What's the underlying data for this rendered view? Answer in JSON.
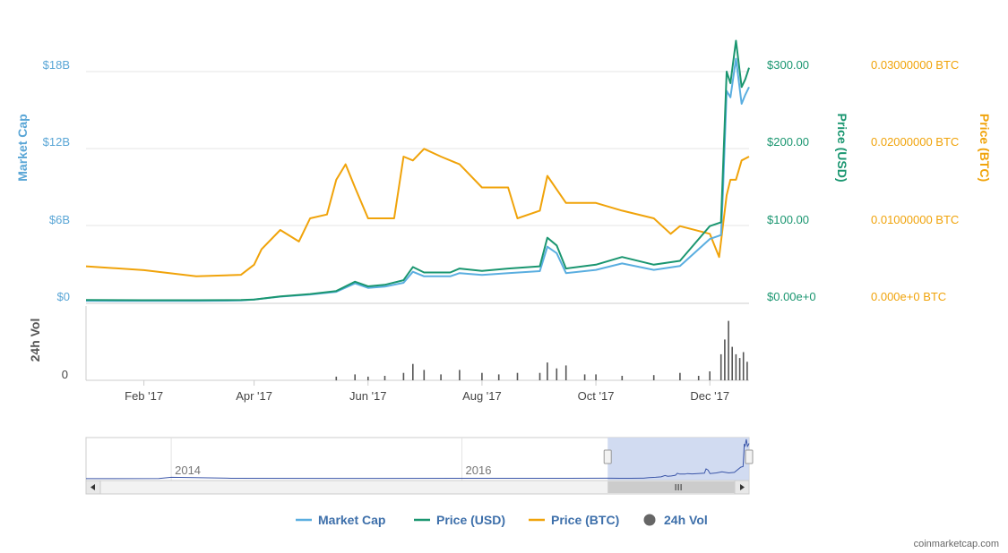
{
  "colors": {
    "market_cap": "#5aaee0",
    "price_usd": "#1a9670",
    "price_btc": "#f0a30a",
    "volume": "#555555",
    "navigator_fill": "#c9d5ee",
    "navigator_line": "#3a55a8"
  },
  "credit": "coinmarketcap.com",
  "chart_data": {
    "type": "line",
    "axes": {
      "market_cap": {
        "title": "Market Cap",
        "ticks": [
          "$0",
          "$6B",
          "$12B",
          "$18B"
        ],
        "ylim": [
          0,
          18000000000
        ]
      },
      "price_usd": {
        "title": "Price (USD)",
        "ticks": [
          "$0.00e+0",
          "$100.00",
          "$200.00",
          "$300.00"
        ],
        "ylim": [
          0,
          300
        ]
      },
      "price_btc": {
        "title": "Price (BTC)",
        "ticks": [
          "0.000e+0 BTC",
          "0.01000000 BTC",
          "0.02000000 BTC",
          "0.03000000 BTC"
        ],
        "ylim": [
          0,
          0.03
        ]
      },
      "volume": {
        "title": "24h Vol",
        "ticks": [
          "0"
        ]
      }
    },
    "x_ticks": [
      "Feb '17",
      "Apr '17",
      "Jun '17",
      "Aug '17",
      "Oct '17",
      "Dec '17"
    ],
    "x_tick_dates": [
      "2017-02-01",
      "2017-04-01",
      "2017-06-01",
      "2017-08-01",
      "2017-10-01",
      "2017-12-01"
    ],
    "xlim": [
      "2017-01-01",
      "2017-12-22"
    ],
    "legend": [
      "Market Cap",
      "Price (USD)",
      "Price (BTC)",
      "24h Vol"
    ],
    "legend_position": "bottom",
    "series": [
      {
        "name": "Price (USD)",
        "axis": "price_usd",
        "points": [
          [
            "2017-01-01",
            4.3
          ],
          [
            "2017-02-01",
            4.0
          ],
          [
            "2017-03-01",
            4.0
          ],
          [
            "2017-03-25",
            4.3
          ],
          [
            "2017-04-01",
            5.0
          ],
          [
            "2017-04-15",
            9.0
          ],
          [
            "2017-05-01",
            12.0
          ],
          [
            "2017-05-15",
            16.0
          ],
          [
            "2017-05-25",
            28.0
          ],
          [
            "2017-06-01",
            22.0
          ],
          [
            "2017-06-10",
            24.0
          ],
          [
            "2017-06-20",
            30.0
          ],
          [
            "2017-06-25",
            47.0
          ],
          [
            "2017-07-01",
            40.0
          ],
          [
            "2017-07-15",
            40.0
          ],
          [
            "2017-07-20",
            45.0
          ],
          [
            "2017-08-01",
            42.0
          ],
          [
            "2017-08-15",
            45.0
          ],
          [
            "2017-09-01",
            48.0
          ],
          [
            "2017-09-05",
            85.0
          ],
          [
            "2017-09-10",
            75.0
          ],
          [
            "2017-09-15",
            45.0
          ],
          [
            "2017-10-01",
            50.0
          ],
          [
            "2017-10-15",
            60.0
          ],
          [
            "2017-11-01",
            50.0
          ],
          [
            "2017-11-15",
            55.0
          ],
          [
            "2017-12-01",
            100.0
          ],
          [
            "2017-12-07",
            105.0
          ],
          [
            "2017-12-08",
            170.0
          ],
          [
            "2017-12-10",
            300.0
          ],
          [
            "2017-12-12",
            285.0
          ],
          [
            "2017-12-15",
            340.0
          ],
          [
            "2017-12-18",
            280.0
          ],
          [
            "2017-12-20",
            290.0
          ],
          [
            "2017-12-22",
            305.0
          ]
        ]
      },
      {
        "name": "Market Cap",
        "axis": "market_cap",
        "points": [
          [
            "2017-01-01",
            200000000
          ],
          [
            "2017-02-01",
            190000000
          ],
          [
            "2017-03-01",
            190000000
          ],
          [
            "2017-03-25",
            220000000
          ],
          [
            "2017-04-01",
            290000000
          ],
          [
            "2017-04-15",
            520000000
          ],
          [
            "2017-05-01",
            690000000
          ],
          [
            "2017-05-15",
            900000000
          ],
          [
            "2017-05-25",
            1550000000
          ],
          [
            "2017-06-01",
            1200000000
          ],
          [
            "2017-06-10",
            1300000000
          ],
          [
            "2017-06-20",
            1600000000
          ],
          [
            "2017-06-25",
            2450000000
          ],
          [
            "2017-07-01",
            2100000000
          ],
          [
            "2017-07-15",
            2100000000
          ],
          [
            "2017-07-20",
            2350000000
          ],
          [
            "2017-08-01",
            2200000000
          ],
          [
            "2017-08-15",
            2350000000
          ],
          [
            "2017-09-01",
            2500000000
          ],
          [
            "2017-09-05",
            4400000000
          ],
          [
            "2017-09-10",
            3900000000
          ],
          [
            "2017-09-15",
            2350000000
          ],
          [
            "2017-10-01",
            2600000000
          ],
          [
            "2017-10-15",
            3100000000
          ],
          [
            "2017-11-01",
            2600000000
          ],
          [
            "2017-11-15",
            2900000000
          ],
          [
            "2017-12-01",
            5000000000
          ],
          [
            "2017-12-07",
            5300000000
          ],
          [
            "2017-12-08",
            8500000000
          ],
          [
            "2017-12-10",
            16500000000
          ],
          [
            "2017-12-12",
            16000000000
          ],
          [
            "2017-12-15",
            19000000000
          ],
          [
            "2017-12-18",
            15500000000
          ],
          [
            "2017-12-20",
            16200000000
          ],
          [
            "2017-12-22",
            16800000000
          ]
        ]
      },
      {
        "name": "Price (BTC)",
        "axis": "price_btc",
        "points": [
          [
            "2017-01-01",
            0.0048
          ],
          [
            "2017-02-01",
            0.0043
          ],
          [
            "2017-03-01",
            0.0035
          ],
          [
            "2017-03-25",
            0.0037
          ],
          [
            "2017-04-01",
            0.005
          ],
          [
            "2017-04-05",
            0.007
          ],
          [
            "2017-04-15",
            0.0095
          ],
          [
            "2017-04-25",
            0.008
          ],
          [
            "2017-05-01",
            0.011
          ],
          [
            "2017-05-10",
            0.0115
          ],
          [
            "2017-05-15",
            0.016
          ],
          [
            "2017-05-20",
            0.018
          ],
          [
            "2017-05-25",
            0.015
          ],
          [
            "2017-06-01",
            0.011
          ],
          [
            "2017-06-10",
            0.011
          ],
          [
            "2017-06-15",
            0.011
          ],
          [
            "2017-06-20",
            0.019
          ],
          [
            "2017-06-25",
            0.0185
          ],
          [
            "2017-07-01",
            0.02
          ],
          [
            "2017-07-10",
            0.019
          ],
          [
            "2017-07-20",
            0.018
          ],
          [
            "2017-08-01",
            0.015
          ],
          [
            "2017-08-15",
            0.015
          ],
          [
            "2017-08-20",
            0.011
          ],
          [
            "2017-09-01",
            0.012
          ],
          [
            "2017-09-05",
            0.0165
          ],
          [
            "2017-09-15",
            0.013
          ],
          [
            "2017-10-01",
            0.013
          ],
          [
            "2017-10-15",
            0.012
          ],
          [
            "2017-11-01",
            0.011
          ],
          [
            "2017-11-10",
            0.009
          ],
          [
            "2017-11-15",
            0.01
          ],
          [
            "2017-12-01",
            0.009
          ],
          [
            "2017-12-06",
            0.006
          ],
          [
            "2017-12-10",
            0.014
          ],
          [
            "2017-12-12",
            0.016
          ],
          [
            "2017-12-15",
            0.016
          ],
          [
            "2017-12-18",
            0.0185
          ],
          [
            "2017-12-22",
            0.019
          ]
        ]
      }
    ],
    "volume": {
      "name": "24h Vol",
      "points": [
        [
          "2017-05-15",
          0.05
        ],
        [
          "2017-05-25",
          0.08
        ],
        [
          "2017-06-01",
          0.05
        ],
        [
          "2017-06-10",
          0.06
        ],
        [
          "2017-06-20",
          0.1
        ],
        [
          "2017-06-25",
          0.22
        ],
        [
          "2017-07-01",
          0.14
        ],
        [
          "2017-07-10",
          0.08
        ],
        [
          "2017-07-20",
          0.14
        ],
        [
          "2017-08-01",
          0.1
        ],
        [
          "2017-08-10",
          0.08
        ],
        [
          "2017-08-20",
          0.1
        ],
        [
          "2017-09-01",
          0.1
        ],
        [
          "2017-09-05",
          0.24
        ],
        [
          "2017-09-10",
          0.16
        ],
        [
          "2017-09-15",
          0.2
        ],
        [
          "2017-09-25",
          0.08
        ],
        [
          "2017-10-01",
          0.08
        ],
        [
          "2017-10-15",
          0.06
        ],
        [
          "2017-11-01",
          0.07
        ],
        [
          "2017-11-15",
          0.1
        ],
        [
          "2017-11-25",
          0.06
        ],
        [
          "2017-12-01",
          0.12
        ],
        [
          "2017-12-07",
          0.35
        ],
        [
          "2017-12-09",
          0.55
        ],
        [
          "2017-12-11",
          0.8
        ],
        [
          "2017-12-13",
          0.45
        ],
        [
          "2017-12-15",
          0.35
        ],
        [
          "2017-12-17",
          0.3
        ],
        [
          "2017-12-19",
          0.38
        ],
        [
          "2017-12-21",
          0.25
        ]
      ]
    },
    "navigator": {
      "x_ticks": [
        "2014",
        "2016"
      ],
      "x_tick_dates": [
        "2014-01-01",
        "2016-01-01"
      ],
      "xlim": [
        "2013-06-01",
        "2017-12-22"
      ],
      "selection": [
        "2017-01-01",
        "2017-12-22"
      ]
    }
  }
}
